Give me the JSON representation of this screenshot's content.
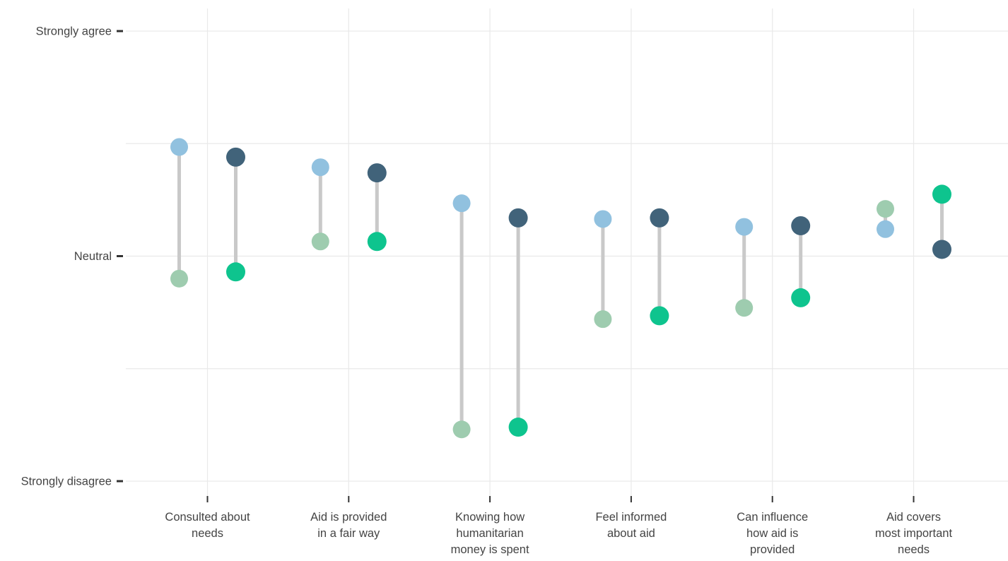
{
  "chart_data": {
    "type": "dumbbell",
    "title": "",
    "legend": "none",
    "y_axis": {
      "scale": "likert-5",
      "ylim": [
        1,
        5
      ],
      "tick_values": [
        5,
        3,
        1
      ],
      "tick_labels": [
        "Strongly agree",
        "Neutral",
        "Strongly disagree"
      ],
      "gridline_values": [
        5,
        4,
        3,
        2,
        1
      ]
    },
    "categories": [
      {
        "label": "Consulted about needs",
        "lines": [
          "Consulted about",
          "needs"
        ]
      },
      {
        "label": "Aid is provided in a fair way",
        "lines": [
          "Aid is provided",
          "in a fair way"
        ]
      },
      {
        "label": "Knowing how humanitarian money is spent",
        "lines": [
          "Knowing how",
          "humanitarian",
          "money is spent"
        ]
      },
      {
        "label": "Feel informed about aid",
        "lines": [
          "Feel informed",
          "about aid"
        ]
      },
      {
        "label": "Can influence how aid is provided",
        "lines": [
          "Can influence",
          "how aid is",
          "provided"
        ]
      },
      {
        "label": "Aid covers most important needs",
        "lines": [
          "Aid covers",
          "most important",
          "needs"
        ]
      }
    ],
    "series": [
      {
        "name": "light-blue",
        "color": "#91c1df",
        "marker_diameter": 25,
        "values": [
          3.97,
          3.79,
          3.47,
          3.33,
          3.26,
          3.24
        ]
      },
      {
        "name": "pale-green",
        "color": "#9eccaf",
        "marker_diameter": 25,
        "values": [
          2.8,
          3.13,
          1.46,
          2.44,
          2.54,
          3.42
        ]
      },
      {
        "name": "dark-blue",
        "color": "#41637a",
        "marker_diameter": 27,
        "values": [
          3.88,
          3.74,
          3.34,
          3.34,
          3.27,
          3.06
        ]
      },
      {
        "name": "teal",
        "color": "#0ec48e",
        "marker_diameter": 27,
        "values": [
          2.86,
          3.13,
          1.48,
          2.47,
          2.63,
          3.55
        ]
      }
    ],
    "dumbbell_pairs": [
      [
        "light-blue",
        "pale-green"
      ],
      [
        "dark-blue",
        "teal"
      ]
    ],
    "colors": {
      "connector": "#c9c9c9",
      "gridline": "#e9e9e9",
      "tick": "#333333",
      "text": "#444444",
      "background": "#ffffff"
    }
  }
}
